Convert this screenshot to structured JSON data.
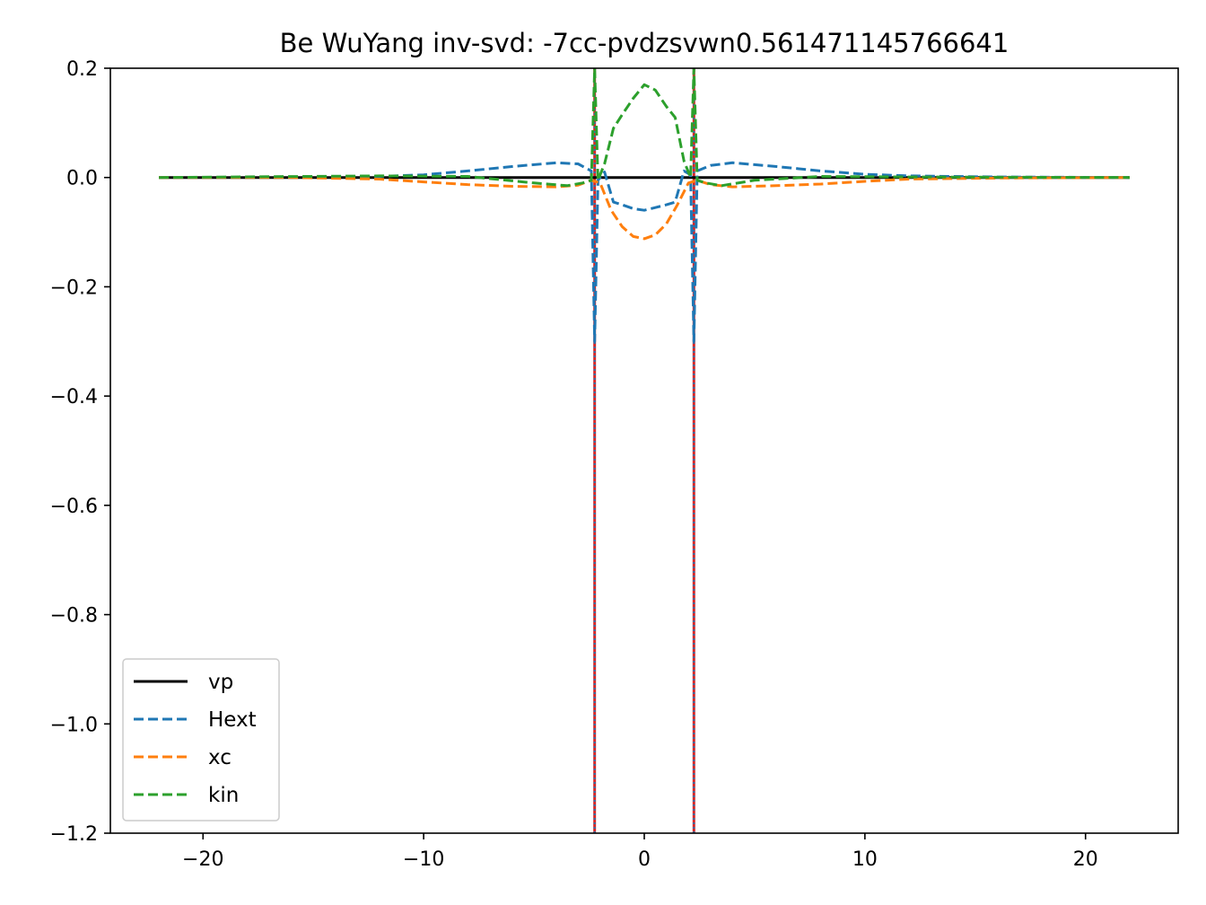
{
  "chart_data": {
    "type": "line",
    "title": "Be WuYang inv-svd: -7cc-pvdzsvwn0.561471145766641",
    "xlabel": "",
    "ylabel": "",
    "xlim": [
      -24.2,
      24.2
    ],
    "ylim": [
      -1.2,
      0.2
    ],
    "xticks": [
      -20,
      -10,
      0,
      10,
      20
    ],
    "xtick_labels": [
      "−20",
      "−10",
      "0",
      "10",
      "20"
    ],
    "yticks": [
      0.2,
      0.0,
      -0.2,
      -0.4,
      -0.6,
      -0.8,
      -1.0,
      -1.2
    ],
    "ytick_labels": [
      "0.2",
      "0.0",
      "−0.2",
      "−0.4",
      "−0.6",
      "−0.8",
      "−1.0",
      "−1.2"
    ],
    "grid": false,
    "legend_position": "lower-left",
    "vertical_lines": [
      {
        "x": -2.25,
        "ymin": -1.2,
        "ymax": 0.2,
        "colors": [
          "#d62728",
          "#1f77b4"
        ]
      },
      {
        "x": 2.25,
        "ymin": -1.2,
        "ymax": 0.2,
        "colors": [
          "#d62728",
          "#1f77b4"
        ]
      }
    ],
    "series": [
      {
        "name": "vp",
        "color": "#000000",
        "style": "solid",
        "x": [
          -22,
          22
        ],
        "y": [
          0,
          0
        ]
      },
      {
        "name": "Hext",
        "color": "#1f77b4",
        "style": "dashed",
        "x": [
          -22,
          -16,
          -12,
          -10,
          -8,
          -6,
          -4,
          -3,
          -2.4,
          -2.25,
          -2.1,
          -1.8,
          -1.4,
          -1.0,
          -0.5,
          0,
          0.5,
          1.0,
          1.4,
          1.8,
          2.1,
          2.25,
          2.4,
          3,
          4,
          6,
          8,
          10,
          12,
          16,
          22
        ],
        "y": [
          0,
          0.0,
          0.002,
          0.005,
          0.012,
          0.02,
          0.027,
          0.025,
          0.012,
          -0.3,
          -0.005,
          0.01,
          -0.045,
          -0.05,
          -0.057,
          -0.06,
          -0.055,
          -0.05,
          -0.045,
          0.012,
          0.005,
          -0.3,
          0.012,
          0.022,
          0.027,
          0.02,
          0.012,
          0.006,
          0.003,
          0.001,
          0.0
        ]
      },
      {
        "name": "xc",
        "color": "#ff7f0e",
        "style": "dashed",
        "x": [
          -22,
          -16,
          -12,
          -10,
          -8,
          -6,
          -4,
          -3,
          -2.4,
          -2.0,
          -1.5,
          -1.0,
          -0.5,
          0,
          0.5,
          1.0,
          1.5,
          2.0,
          2.4,
          3,
          4,
          6,
          8,
          10,
          12,
          16,
          22
        ],
        "y": [
          0,
          0.0,
          -0.003,
          -0.008,
          -0.013,
          -0.016,
          -0.017,
          -0.014,
          -0.005,
          -0.01,
          -0.06,
          -0.09,
          -0.108,
          -0.112,
          -0.105,
          -0.085,
          -0.05,
          -0.01,
          -0.005,
          -0.013,
          -0.017,
          -0.015,
          -0.012,
          -0.007,
          -0.003,
          -0.001,
          0.0
        ]
      },
      {
        "name": "kin",
        "color": "#2ca02c",
        "style": "dashed",
        "x": [
          -22,
          -12,
          -8,
          -5,
          -3.5,
          -2.8,
          -2.4,
          -2.25,
          -2.1,
          -1.8,
          -1.4,
          -1.0,
          -0.5,
          0,
          0.5,
          1.0,
          1.4,
          1.8,
          2.1,
          2.25,
          2.4,
          2.8,
          3.5,
          5,
          8,
          12,
          22
        ],
        "y": [
          0,
          0.003,
          0.002,
          -0.01,
          -0.015,
          -0.01,
          -0.005,
          0.2,
          -0.005,
          0.025,
          0.09,
          0.115,
          0.145,
          0.17,
          0.16,
          0.13,
          0.11,
          0.03,
          0.0,
          0.2,
          -0.005,
          -0.01,
          -0.015,
          -0.005,
          0.002,
          0.001,
          0.0
        ]
      }
    ]
  }
}
